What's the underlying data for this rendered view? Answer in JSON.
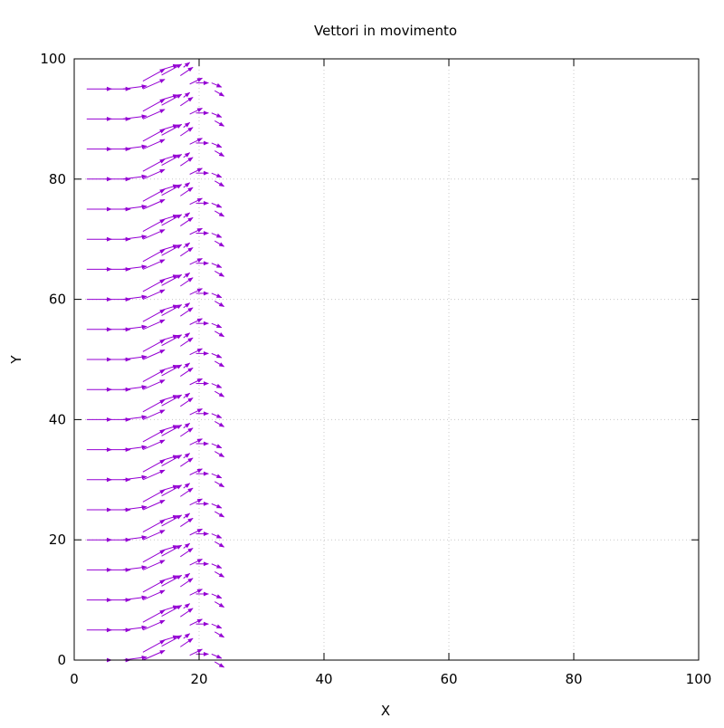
{
  "chart_data": {
    "type": "vector-field",
    "title": "Vettori in movimento",
    "xlabel": "X",
    "ylabel": "Y",
    "xlim": [
      0,
      100
    ],
    "ylim": [
      0,
      100
    ],
    "xticks": [
      0,
      20,
      40,
      60,
      80,
      100
    ],
    "yticks": [
      0,
      20,
      40,
      60,
      80,
      100
    ],
    "grid": true,
    "grid_style": "dotted",
    "legend": "none",
    "colors": {
      "vector": "#9400d3",
      "grid": "#c8c8c8",
      "frame": "#000000"
    },
    "row_y_start": 0,
    "row_y_end": 95,
    "row_y_step": 5,
    "vectors_per_row": [
      {
        "x": 2.0,
        "y_offset": 0.0,
        "dx": 4.0,
        "dy": 0.0
      },
      {
        "x": 5.0,
        "y_offset": 0.0,
        "dx": 4.0,
        "dy": 0.0
      },
      {
        "x": 7.8,
        "y_offset": 0.0,
        "dx": 3.8,
        "dy": 0.5
      },
      {
        "x": 11.0,
        "y_offset": 0.0,
        "dx": 3.5,
        "dy": 1.6
      },
      {
        "x": 11.0,
        "y_offset": 1.3,
        "dx": 3.5,
        "dy": 2.0
      },
      {
        "x": 14.0,
        "y_offset": 2.3,
        "dx": 3.2,
        "dy": 1.8
      },
      {
        "x": 14.0,
        "y_offset": 3.2,
        "dx": 2.6,
        "dy": 0.8
      },
      {
        "x": 17.0,
        "y_offset": 2.2,
        "dx": 2.0,
        "dy": 1.4
      },
      {
        "x": 17.5,
        "y_offset": 3.6,
        "dx": 1.0,
        "dy": 0.8
      },
      {
        "x": 18.5,
        "y_offset": 0.8,
        "dx": 2.0,
        "dy": 1.0
      },
      {
        "x": 19.5,
        "y_offset": 1.0,
        "dx": 2.0,
        "dy": 0.0
      },
      {
        "x": 22.0,
        "y_offset": 1.0,
        "dx": 1.6,
        "dy": -0.7
      },
      {
        "x": 22.5,
        "y_offset": -0.3,
        "dx": 1.5,
        "dy": -0.9
      }
    ]
  }
}
